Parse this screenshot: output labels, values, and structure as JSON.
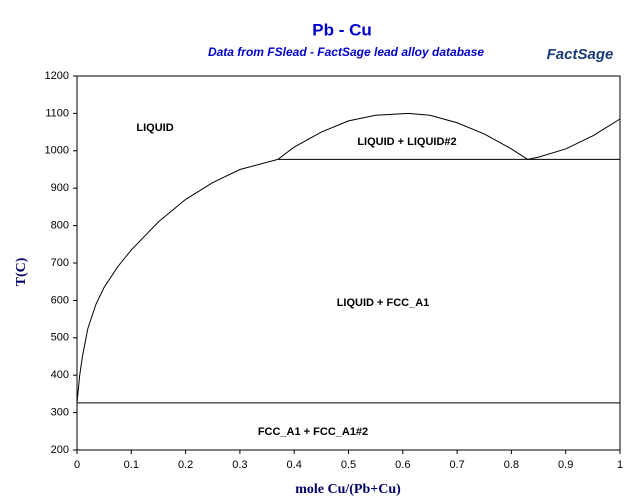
{
  "chart_data": {
    "type": "line",
    "title": "Pb - Cu",
    "subtitle": "Data from FSlead - FactSage lead alloy database",
    "logo": "FactSage",
    "x_label": "mole Cu/(Pb+Cu)",
    "y_label": "T(C)",
    "xlim": [
      0,
      1
    ],
    "ylim": [
      200,
      1200
    ],
    "xticks": [
      0,
      0.1,
      0.2,
      0.3,
      0.4,
      0.5,
      0.6,
      0.7,
      0.8,
      0.9,
      1
    ],
    "yticks": [
      200,
      300,
      400,
      500,
      600,
      700,
      800,
      900,
      1000,
      1100,
      1200
    ],
    "annotations": [
      "LIQUID",
      "LIQUID + LIQUID#2",
      "LIQUID + FCC_A1",
      "FCC_A1 + FCC_A1#2"
    ],
    "series": [
      {
        "color": "#000000",
        "x": [
          0,
          0.005,
          0.01,
          0.02,
          0.035,
          0.05,
          0.075,
          0.1,
          0.15,
          0.2,
          0.25,
          0.3,
          0.37
        ],
        "values": [
          327,
          400,
          450,
          525,
          590,
          635,
          690,
          735,
          810,
          870,
          915,
          950,
          977
        ]
      },
      {
        "color": "#000000",
        "x": [
          0.37,
          0.4,
          0.45,
          0.5,
          0.55,
          0.61,
          0.65,
          0.7,
          0.75,
          0.8,
          0.83
        ],
        "values": [
          977,
          1010,
          1050,
          1080,
          1095,
          1100,
          1095,
          1075,
          1045,
          1005,
          977
        ]
      },
      {
        "color": "#000000",
        "x": [
          0.83,
          0.85,
          0.9,
          0.95,
          1
        ],
        "values": [
          977,
          983,
          1005,
          1040,
          1085
        ]
      },
      {
        "color": "#000000",
        "x": [
          0.37,
          1
        ],
        "values": [
          977,
          977
        ]
      },
      {
        "color": "#000000",
        "x": [
          0,
          1
        ],
        "values": [
          326,
          326
        ]
      }
    ]
  }
}
